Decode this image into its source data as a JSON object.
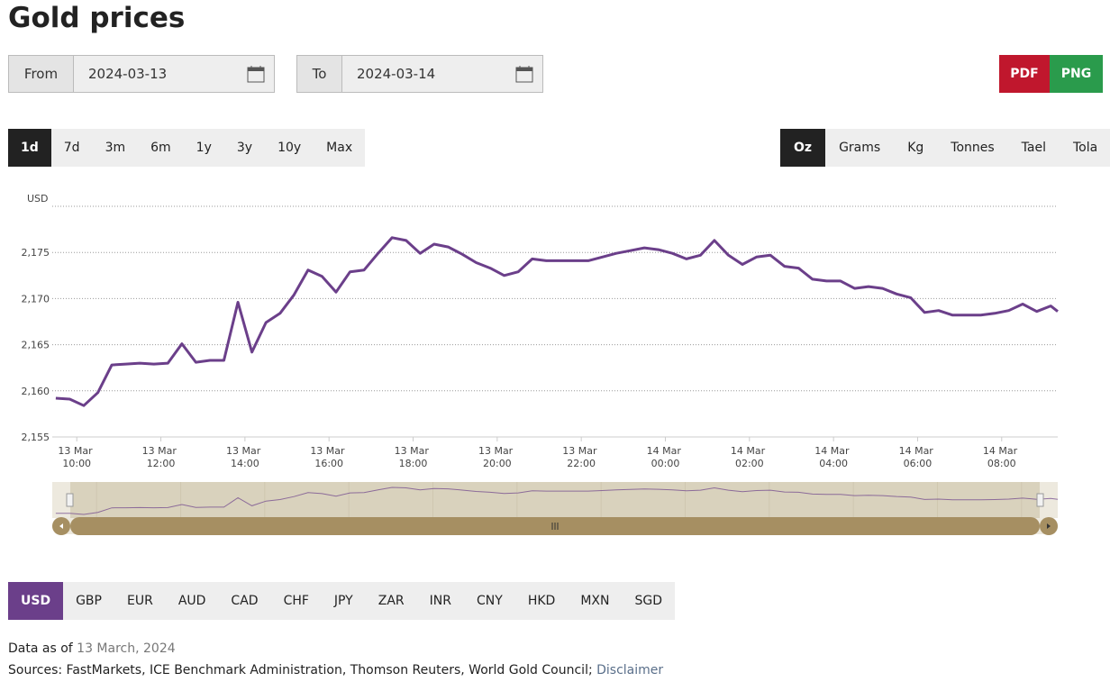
{
  "header": {
    "title": "Gold prices"
  },
  "date_range": {
    "from_label": "From",
    "from_value": "2024-03-13",
    "to_label": "To",
    "to_value": "2024-03-14"
  },
  "export": {
    "pdf": "PDF",
    "png": "PNG"
  },
  "periods": {
    "options": [
      "1d",
      "7d",
      "3m",
      "6m",
      "1y",
      "3y",
      "10y",
      "Max"
    ],
    "active": "1d"
  },
  "units": {
    "options": [
      "Oz",
      "Grams",
      "Kg",
      "Tonnes",
      "Tael",
      "Tola"
    ],
    "active": "Oz"
  },
  "currencies": {
    "options": [
      "USD",
      "GBP",
      "EUR",
      "AUD",
      "CAD",
      "CHF",
      "JPY",
      "ZAR",
      "INR",
      "CNY",
      "HKD",
      "MXN",
      "SGD"
    ],
    "active": "USD"
  },
  "footer": {
    "data_as_of_label": "Data as of",
    "data_as_of_date": "13 March, 2024",
    "sources": "Sources: FastMarkets, ICE Benchmark Administration, Thomson Reuters, World Gold Council;",
    "disclaimer": "Disclaimer"
  },
  "chart_data": {
    "type": "line",
    "y_label": "USD",
    "grid": true,
    "xlim": [
      "13 Mar 09:25",
      "14 Mar 09:20"
    ],
    "xticks": [
      "13 Mar 10:00",
      "13 Mar 12:00",
      "13 Mar 14:00",
      "13 Mar 16:00",
      "13 Mar 18:00",
      "13 Mar 20:00",
      "13 Mar 22:00",
      "14 Mar 00:00",
      "14 Mar 02:00",
      "14 Mar 04:00",
      "14 Mar 06:00",
      "14 Mar 08:00"
    ],
    "ylim": [
      2155,
      2180
    ],
    "yticks": [
      {
        "value": 2155,
        "label": "2,155"
      },
      {
        "value": 2160,
        "label": "2,160"
      },
      {
        "value": 2165,
        "label": "2,165"
      },
      {
        "value": 2170,
        "label": "2,170"
      },
      {
        "value": 2175,
        "label": "2,175"
      }
    ],
    "x": [
      "13 Mar 09:30",
      "13 Mar 09:50",
      "13 Mar 10:10",
      "13 Mar 10:30",
      "13 Mar 10:50",
      "13 Mar 11:10",
      "13 Mar 11:30",
      "13 Mar 11:50",
      "13 Mar 12:10",
      "13 Mar 12:30",
      "13 Mar 12:50",
      "13 Mar 13:10",
      "13 Mar 13:30",
      "13 Mar 13:50",
      "13 Mar 14:10",
      "13 Mar 14:30",
      "13 Mar 14:50",
      "13 Mar 15:10",
      "13 Mar 15:30",
      "13 Mar 15:50",
      "13 Mar 16:10",
      "13 Mar 16:30",
      "13 Mar 16:50",
      "13 Mar 17:10",
      "13 Mar 17:30",
      "13 Mar 17:50",
      "13 Mar 18:10",
      "13 Mar 18:30",
      "13 Mar 18:50",
      "13 Mar 19:10",
      "13 Mar 19:30",
      "13 Mar 19:50",
      "13 Mar 20:10",
      "13 Mar 20:30",
      "13 Mar 20:50",
      "13 Mar 21:10",
      "13 Mar 21:30",
      "13 Mar 21:50",
      "13 Mar 22:10",
      "13 Mar 22:30",
      "13 Mar 22:50",
      "13 Mar 23:10",
      "13 Mar 23:30",
      "13 Mar 23:50",
      "14 Mar 00:10",
      "14 Mar 00:30",
      "14 Mar 00:50",
      "14 Mar 01:10",
      "14 Mar 01:30",
      "14 Mar 01:50",
      "14 Mar 02:10",
      "14 Mar 02:30",
      "14 Mar 02:50",
      "14 Mar 03:10",
      "14 Mar 03:30",
      "14 Mar 03:50",
      "14 Mar 04:10",
      "14 Mar 04:30",
      "14 Mar 04:50",
      "14 Mar 05:10",
      "14 Mar 05:30",
      "14 Mar 05:50",
      "14 Mar 06:10",
      "14 Mar 06:30",
      "14 Mar 06:50",
      "14 Mar 07:10",
      "14 Mar 07:30",
      "14 Mar 07:50",
      "14 Mar 08:10",
      "14 Mar 08:30",
      "14 Mar 08:50",
      "14 Mar 09:10",
      "14 Mar 09:20"
    ],
    "series": [
      {
        "color": "#6b3f8a",
        "values": [
          2159.2,
          2159.1,
          2158.4,
          2159.8,
          2162.8,
          2162.9,
          2163.0,
          2162.9,
          2163.0,
          2165.1,
          2163.1,
          2163.3,
          2163.3,
          2169.6,
          2164.2,
          2167.4,
          2168.4,
          2170.4,
          2173.1,
          2172.4,
          2170.7,
          2172.9,
          2173.1,
          2174.9,
          2176.6,
          2176.3,
          2174.9,
          2175.9,
          2175.6,
          2174.8,
          2173.9,
          2173.3,
          2172.5,
          2172.9,
          2174.3,
          2174.1,
          2174.1,
          2174.1,
          2174.1,
          2174.5,
          2174.9,
          2175.2,
          2175.5,
          2175.3,
          2174.9,
          2174.3,
          2174.7,
          2176.3,
          2174.7,
          2173.7,
          2174.5,
          2174.7,
          2173.5,
          2173.3,
          2172.1,
          2171.9,
          2171.9,
          2171.1,
          2171.3,
          2171.1,
          2170.5,
          2170.1,
          2168.5,
          2168.7,
          2168.2,
          2168.2,
          2168.2,
          2168.4,
          2168.7,
          2169.4,
          2168.6,
          2169.2,
          2168.6
        ]
      }
    ]
  }
}
